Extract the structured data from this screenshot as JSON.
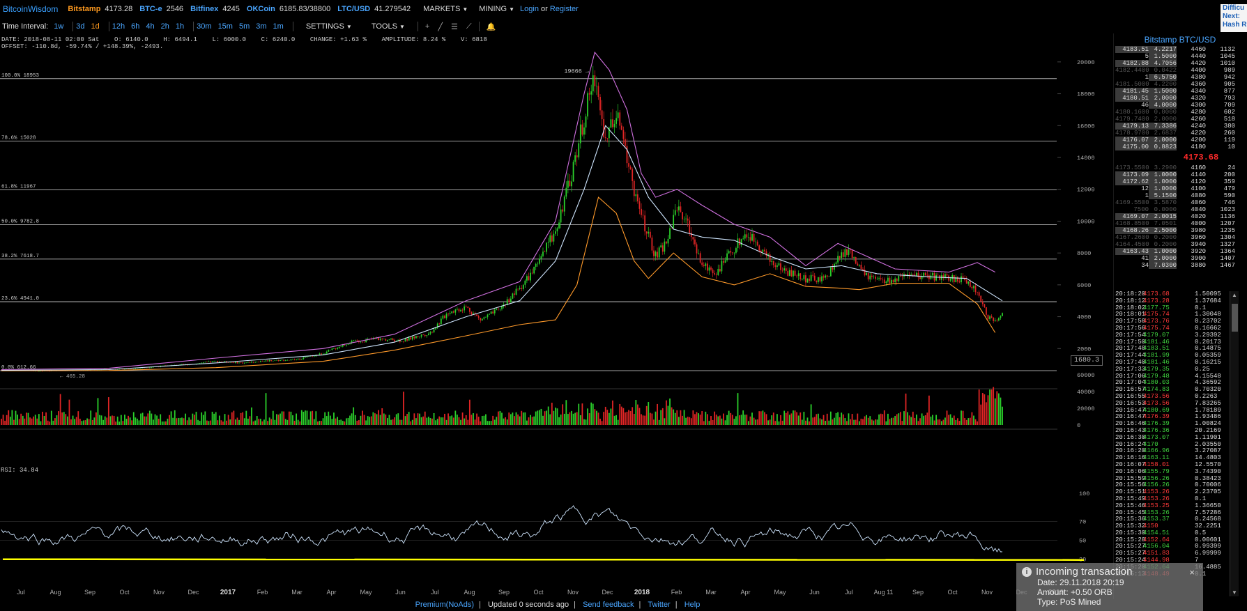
{
  "topbar": {
    "brand": "BitcoinWisdom",
    "exchanges": [
      {
        "name": "Bitstamp",
        "price": "4173.28",
        "color": "#ff9a1f"
      },
      {
        "name": "BTC-e",
        "price": "2546",
        "color": "#4aa6ff"
      },
      {
        "name": "Bitfinex",
        "price": "4245",
        "color": "#4aa6ff"
      },
      {
        "name": "OKCoin",
        "price": "6185.83/38800",
        "color": "#4aa6ff"
      },
      {
        "name": "LTC/USD",
        "price": "41.279542",
        "color": "#4aa6ff"
      }
    ],
    "markets": "MARKETS",
    "mining": "MINING",
    "login": "Login",
    "or": "or",
    "register": "Register",
    "right_panel": [
      "Difficu",
      "Next:",
      "Hash R"
    ]
  },
  "toolbar": {
    "label": "Time Interval:",
    "intervals": [
      "1w",
      "3d",
      "1d",
      "12h",
      "6h",
      "4h",
      "2h",
      "1h",
      "30m",
      "15m",
      "5m",
      "3m",
      "1m"
    ],
    "selected": "1d",
    "settings": "SETTINGS",
    "tools": "TOOLS"
  },
  "info": {
    "line1": "DATE: 2018-08-11 02:00 Sat    O: 6140.0    H: 6494.1    L: 6000.0    C: 6240.0    CHANGE: +1.63 %    AMPLITUDE: 8.24 %    V: 6818",
    "line2": "OFFSET: -110.8d, -59.74% / +148.39%, -2493."
  },
  "chart_data": {
    "type": "candlestick",
    "fib_levels": [
      {
        "label": "100.0% 18953",
        "value": 18953
      },
      {
        "label": "78.6% 15028",
        "value": 15028
      },
      {
        "label": "61.8% 11967",
        "value": 11967
      },
      {
        "label": "50.0% 9782.8",
        "value": 9782.8
      },
      {
        "label": "38.2% 7618.7",
        "value": 7618.7
      },
      {
        "label": "23.6% 4941.0",
        "value": 4941.0
      },
      {
        "label": "0.0% 612.66",
        "value": 612.66
      }
    ],
    "price_ticks": [
      2000,
      4000,
      6000,
      8000,
      10000,
      12000,
      14000,
      16000,
      18000,
      20000
    ],
    "price_ylim": [
      0,
      21000
    ],
    "peak_label": "19666",
    "low_label": "465.28",
    "cursor_price": "1680.3",
    "volume_ticks": [
      0,
      20000,
      40000,
      60000
    ],
    "rsi_label": "RSI: 34.84",
    "rsi_ticks": [
      30,
      50,
      70,
      100
    ],
    "x_labels": [
      "Jul",
      "Aug",
      "Sep",
      "Oct",
      "Nov",
      "Dec",
      "2017",
      "Feb",
      "Mar",
      "Apr",
      "May",
      "Jun",
      "Jul",
      "Aug",
      "Sep",
      "Oct",
      "Nov",
      "Dec",
      "2018",
      "Feb",
      "Mar",
      "Apr",
      "May",
      "Jun",
      "Jul",
      "Aug 11",
      "Sep",
      "Oct",
      "Nov",
      "Dec",
      "2019"
    ],
    "close_path": [
      [
        0,
        650
      ],
      [
        20,
        600
      ],
      [
        40,
        620
      ],
      [
        60,
        700
      ],
      [
        75,
        740
      ],
      [
        90,
        900
      ],
      [
        105,
        1000
      ],
      [
        120,
        1200
      ],
      [
        135,
        1100
      ],
      [
        150,
        1250
      ],
      [
        165,
        1300
      ],
      [
        180,
        1700
      ],
      [
        195,
        2400
      ],
      [
        210,
        2600
      ],
      [
        225,
        2500
      ],
      [
        240,
        3000
      ],
      [
        250,
        4300
      ],
      [
        260,
        4600
      ],
      [
        268,
        3800
      ],
      [
        278,
        4400
      ],
      [
        290,
        5800
      ],
      [
        300,
        7200
      ],
      [
        310,
        9500
      ],
      [
        318,
        12500
      ],
      [
        326,
        16500
      ],
      [
        332,
        19200
      ],
      [
        338,
        15000
      ],
      [
        344,
        16800
      ],
      [
        350,
        14000
      ],
      [
        356,
        11000
      ],
      [
        362,
        9000
      ],
      [
        366,
        7800
      ],
      [
        372,
        8600
      ],
      [
        378,
        11000
      ],
      [
        385,
        9500
      ],
      [
        392,
        7200
      ],
      [
        400,
        6800
      ],
      [
        408,
        8000
      ],
      [
        416,
        9200
      ],
      [
        422,
        8800
      ],
      [
        430,
        7500
      ],
      [
        440,
        6800
      ],
      [
        450,
        6400
      ],
      [
        460,
        6300
      ],
      [
        468,
        7600
      ],
      [
        474,
        8200
      ],
      [
        480,
        7000
      ],
      [
        486,
        6400
      ],
      [
        492,
        6200
      ],
      [
        500,
        6300
      ],
      [
        508,
        6500
      ],
      [
        516,
        6600
      ],
      [
        524,
        6500
      ],
      [
        532,
        6400
      ],
      [
        540,
        6300
      ],
      [
        546,
        5500
      ],
      [
        552,
        4000
      ],
      [
        556,
        3700
      ],
      [
        560,
        4100
      ]
    ],
    "sma_path": [
      [
        0,
        630
      ],
      [
        60,
        680
      ],
      [
        120,
        1100
      ],
      [
        180,
        1600
      ],
      [
        220,
        2400
      ],
      [
        260,
        4000
      ],
      [
        290,
        5000
      ],
      [
        310,
        7500
      ],
      [
        326,
        12000
      ],
      [
        338,
        16000
      ],
      [
        350,
        14500
      ],
      [
        362,
        11500
      ],
      [
        376,
        9500
      ],
      [
        392,
        9000
      ],
      [
        410,
        8800
      ],
      [
        430,
        7800
      ],
      [
        450,
        7000
      ],
      [
        470,
        7200
      ],
      [
        490,
        6700
      ],
      [
        520,
        6500
      ],
      [
        540,
        6400
      ],
      [
        560,
        5000
      ]
    ],
    "upper_band": [
      [
        0,
        680
      ],
      [
        60,
        760
      ],
      [
        120,
        1400
      ],
      [
        180,
        2000
      ],
      [
        220,
        2900
      ],
      [
        260,
        5000
      ],
      [
        290,
        6200
      ],
      [
        310,
        10000
      ],
      [
        326,
        18000
      ],
      [
        332,
        20600
      ],
      [
        340,
        19500
      ],
      [
        350,
        17000
      ],
      [
        358,
        13000
      ],
      [
        366,
        11500
      ],
      [
        378,
        12000
      ],
      [
        392,
        11000
      ],
      [
        410,
        9800
      ],
      [
        430,
        9000
      ],
      [
        450,
        7200
      ],
      [
        468,
        8600
      ],
      [
        480,
        8000
      ],
      [
        500,
        7000
      ],
      [
        530,
        6800
      ],
      [
        546,
        7400
      ],
      [
        556,
        6800
      ]
    ],
    "lower_band": [
      [
        0,
        600
      ],
      [
        60,
        620
      ],
      [
        120,
        800
      ],
      [
        180,
        1200
      ],
      [
        220,
        1900
      ],
      [
        260,
        2800
      ],
      [
        290,
        3500
      ],
      [
        310,
        3800
      ],
      [
        322,
        6000
      ],
      [
        334,
        11500
      ],
      [
        344,
        10500
      ],
      [
        354,
        7500
      ],
      [
        362,
        6400
      ],
      [
        376,
        8000
      ],
      [
        392,
        6500
      ],
      [
        410,
        6000
      ],
      [
        430,
        6700
      ],
      [
        450,
        5900
      ],
      [
        468,
        5800
      ],
      [
        480,
        5700
      ],
      [
        500,
        6100
      ],
      [
        530,
        6100
      ],
      [
        546,
        4800
      ],
      [
        556,
        3000
      ]
    ],
    "rsi_line_level": 30
  },
  "orderbook": {
    "title": "Bitstamp BTC/USD",
    "asks": [
      {
        "p": "4183.51",
        "v": "4.2217",
        "bp": "4460",
        "bv": "1132",
        "dim": false
      },
      {
        "p": "5",
        "v": "1.5000",
        "bp": "4440",
        "bv": "1045",
        "dim": false
      },
      {
        "p": "4182.88",
        "v": "4.7056",
        "bp": "4420",
        "bv": "1010",
        "dim": false
      },
      {
        "p": "4182.4400",
        "v": "0.0422",
        "bp": "4400",
        "bv": "989",
        "dim": true
      },
      {
        "p": "1",
        "v": "6.5750",
        "bp": "4380",
        "bv": "942",
        "dim": false
      },
      {
        "p": "4181.5000",
        "v": "4.2200",
        "bp": "4360",
        "bv": "905",
        "dim": true
      },
      {
        "p": "4181.45",
        "v": "1.5000",
        "bp": "4340",
        "bv": "877",
        "dim": false
      },
      {
        "p": "4180.51",
        "v": "2.0000",
        "bp": "4320",
        "bv": "793",
        "dim": false
      },
      {
        "p": "46",
        "v": "4.0000",
        "bp": "4300",
        "bv": "709",
        "dim": false
      },
      {
        "p": "4180.1600",
        "v": "0.0000",
        "bp": "4280",
        "bv": "602",
        "dim": true
      },
      {
        "p": "4179.7400",
        "v": "2.0000",
        "bp": "4260",
        "bv": "518",
        "dim": true
      },
      {
        "p": "4179.13",
        "v": "7.3386",
        "bp": "4240",
        "bv": "380",
        "dim": false
      },
      {
        "p": "4178.9700",
        "v": "2.6837",
        "bp": "4220",
        "bv": "260",
        "dim": true
      },
      {
        "p": "4176.07",
        "v": "2.0000",
        "bp": "4200",
        "bv": "119",
        "dim": false
      },
      {
        "p": "4175.00",
        "v": "0.8823",
        "bp": "4180",
        "bv": "10",
        "dim": false
      }
    ],
    "last": "4173.68",
    "bids": [
      {
        "p": "4173.5500",
        "v": "3.2900",
        "bp": "4160",
        "bv": "24",
        "dim": true
      },
      {
        "p": "4173.09",
        "v": "1.0000",
        "bp": "4140",
        "bv": "200",
        "dim": false
      },
      {
        "p": "4172.62",
        "v": "1.0000",
        "bp": "4120",
        "bv": "359",
        "dim": false
      },
      {
        "p": "12",
        "v": "1.0000",
        "bp": "4100",
        "bv": "479",
        "dim": false
      },
      {
        "p": "1",
        "v": "5.1500",
        "bp": "4080",
        "bv": "590",
        "dim": false
      },
      {
        "p": "4169.5500",
        "v": "3.5870",
        "bp": "4060",
        "bv": "746",
        "dim": true
      },
      {
        "p": "7500",
        "v": "0.0000",
        "bp": "4040",
        "bv": "1023",
        "dim": true
      },
      {
        "p": "4169.07",
        "v": "2.0015",
        "bp": "4020",
        "bv": "1136",
        "dim": false
      },
      {
        "p": "4168.8500",
        "v": "7.0501",
        "bp": "4000",
        "bv": "1207",
        "dim": true
      },
      {
        "p": "4168.26",
        "v": "2.5000",
        "bp": "3980",
        "bv": "1235",
        "dim": false
      },
      {
        "p": "4167.2600",
        "v": "0.2000",
        "bp": "3960",
        "bv": "1304",
        "dim": true
      },
      {
        "p": "4164.4500",
        "v": "0.2000",
        "bp": "3940",
        "bv": "1327",
        "dim": true
      },
      {
        "p": "4163.43",
        "v": "1.0000",
        "bp": "3920",
        "bv": "1364",
        "dim": false
      },
      {
        "p": "41",
        "v": "2.0000",
        "bp": "3900",
        "bv": "1407",
        "dim": false
      },
      {
        "p": "34",
        "v": "7.0300",
        "bp": "3880",
        "bv": "1467",
        "dim": false
      }
    ]
  },
  "trades": [
    {
      "t": "20:18:20",
      "p": "4173.68",
      "a": "1.50095",
      "up": false
    },
    {
      "t": "20:18:12",
      "p": "4173.28",
      "a": "1.37684",
      "up": false
    },
    {
      "t": "20:18:02",
      "p": "4177.75",
      "a": "0.1",
      "up": true
    },
    {
      "t": "20:18:01",
      "p": "4175.74",
      "a": "1.30048",
      "up": false
    },
    {
      "t": "20:17:58",
      "p": "4173.76",
      "a": "0.23702",
      "up": false
    },
    {
      "t": "20:17:56",
      "p": "4175.74",
      "a": "0.16662",
      "up": false
    },
    {
      "t": "20:17:54",
      "p": "4179.07",
      "a": "3.29392",
      "up": true
    },
    {
      "t": "20:17:50",
      "p": "4181.46",
      "a": "0.20173",
      "up": true
    },
    {
      "t": "20:17:48",
      "p": "4183.51",
      "a": "0.14875",
      "up": true
    },
    {
      "t": "20:17:44",
      "p": "4181.99",
      "a": "0.05359",
      "up": true
    },
    {
      "t": "20:17:40",
      "p": "4181.46",
      "a": "0.16215",
      "up": true
    },
    {
      "t": "20:17:33",
      "p": "4179.35",
      "a": "0.25",
      "up": true
    },
    {
      "t": "20:17:06",
      "p": "4179.48",
      "a": "4.15548",
      "up": true
    },
    {
      "t": "20:17:04",
      "p": "4180.03",
      "a": "4.36592",
      "up": true
    },
    {
      "t": "20:16:57",
      "p": "4174.83",
      "a": "0.70320",
      "up": true
    },
    {
      "t": "20:16:55",
      "p": "4173.56",
      "a": "0.2263",
      "up": false
    },
    {
      "t": "20:16:53",
      "p": "4173.56",
      "a": "7.83265",
      "up": false
    },
    {
      "t": "20:16:47",
      "p": "4180.69",
      "a": "1.78189",
      "up": true
    },
    {
      "t": "20:16:47",
      "p": "4176.39",
      "a": "1.93486",
      "up": false
    },
    {
      "t": "20:16:46",
      "p": "4176.39",
      "a": "1.00824",
      "up": true
    },
    {
      "t": "20:16:43",
      "p": "4176.36",
      "a": "20.2169",
      "up": true
    },
    {
      "t": "20:16:30",
      "p": "4173.07",
      "a": "1.11901",
      "up": true
    },
    {
      "t": "20:16:24",
      "p": "4170",
      "a": "2.03550",
      "up": true
    },
    {
      "t": "20:16:20",
      "p": "4166.96",
      "a": "3.27087",
      "up": true
    },
    {
      "t": "20:16:16",
      "p": "4163.11",
      "a": "14.4803",
      "up": true
    },
    {
      "t": "20:16:07",
      "p": "4158.01",
      "a": "12.5570",
      "up": false
    },
    {
      "t": "20:16:06",
      "p": "4155.79",
      "a": "3.74390",
      "up": true
    },
    {
      "t": "20:15:59",
      "p": "4156.26",
      "a": "0.38423",
      "up": true
    },
    {
      "t": "20:15:56",
      "p": "4156.26",
      "a": "0.70006",
      "up": true
    },
    {
      "t": "20:15:51",
      "p": "4153.26",
      "a": "2.23705",
      "up": false
    },
    {
      "t": "20:15:49",
      "p": "4153.26",
      "a": "0.1",
      "up": false
    },
    {
      "t": "20:15:46",
      "p": "4153.25",
      "a": "1.36650",
      "up": false
    },
    {
      "t": "20:15:45",
      "p": "4153.26",
      "a": "7.57286",
      "up": true
    },
    {
      "t": "20:15:36",
      "p": "4153.37",
      "a": "0.24568",
      "up": true
    },
    {
      "t": "20:15:32",
      "p": "4150",
      "a": "32.2251",
      "up": false
    },
    {
      "t": "20:15:30",
      "p": "4154.51",
      "a": "0.5",
      "up": true
    },
    {
      "t": "20:15:28",
      "p": "4152.64",
      "a": "0.00601",
      "up": false
    },
    {
      "t": "20:15:27",
      "p": "4156.04",
      "a": "0.99399",
      "up": true
    },
    {
      "t": "20:15:27",
      "p": "4151.83",
      "a": "6.99999",
      "up": false
    },
    {
      "t": "20:15:24",
      "p": "4144.98",
      "a": "7",
      "up": false
    },
    {
      "t": "20:15:20",
      "p": "4152.64",
      "a": "16.4885",
      "up": true
    },
    {
      "t": "20:15:13",
      "p": "4148.49",
      "a": "0.1",
      "up": false
    }
  ],
  "popup": {
    "title": "Incoming transaction",
    "date": "Date: 29.11.2018 20:19",
    "amount": "Amount: +0.50 ORB",
    "type": "Type: PoS Mined",
    "close": "×"
  },
  "footer": {
    "premium": "Premium(NoAds)",
    "updated": "Updated 0 seconds ago",
    "feedback": "Send feedback",
    "twitter": "Twitter",
    "help": "Help"
  }
}
